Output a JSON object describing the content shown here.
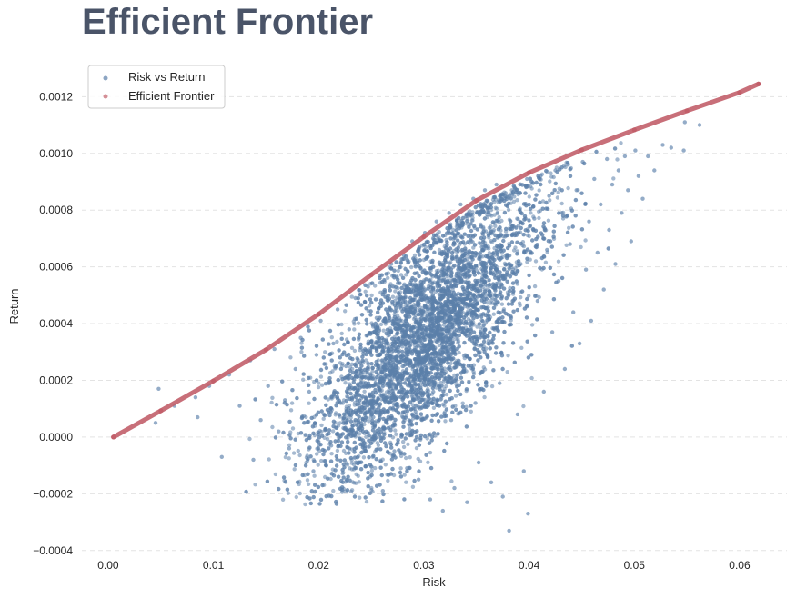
{
  "chart_data": {
    "type": "scatter",
    "title": "Efficient Frontier",
    "xlabel": "Risk",
    "ylabel": "Return",
    "xlim": [
      -0.0025,
      0.0645
    ],
    "ylim": [
      -0.00042,
      0.00131
    ],
    "x_ticks": [
      {
        "value": 0.0,
        "label": "0.00"
      },
      {
        "value": 0.01,
        "label": "0.01"
      },
      {
        "value": 0.02,
        "label": "0.02"
      },
      {
        "value": 0.03,
        "label": "0.03"
      },
      {
        "value": 0.04,
        "label": "0.04"
      },
      {
        "value": 0.05,
        "label": "0.05"
      },
      {
        "value": 0.06,
        "label": "0.06"
      }
    ],
    "y_ticks": [
      {
        "value": -0.0004,
        "label": "−0.0004"
      },
      {
        "value": -0.0002,
        "label": "−0.0002"
      },
      {
        "value": 0.0,
        "label": "0.0000"
      },
      {
        "value": 0.0002,
        "label": "0.0002"
      },
      {
        "value": 0.0004,
        "label": "0.0004"
      },
      {
        "value": 0.0006,
        "label": "0.0006"
      },
      {
        "value": 0.0008,
        "label": "0.0008"
      },
      {
        "value": 0.001,
        "label": "0.0010"
      },
      {
        "value": 0.0012,
        "label": "0.0012"
      }
    ],
    "grid": {
      "y": true,
      "x": false,
      "style": "dashed"
    },
    "legend_position": "top-left",
    "series": [
      {
        "name": "Risk vs Return",
        "color": "#5b7faa",
        "points": [
          [
            0.0045,
            5e-05
          ],
          [
            0.0048,
            0.00017
          ],
          [
            0.0063,
            0.00011
          ],
          [
            0.0083,
            0.00014
          ],
          [
            0.0085,
            7e-05
          ],
          [
            0.0096,
            0.00018
          ],
          [
            0.0108,
            -7e-05
          ],
          [
            0.0115,
            0.00022
          ],
          [
            0.0125,
            0.00011
          ],
          [
            0.0135,
            0.00027
          ],
          [
            0.0138,
            -8e-05
          ],
          [
            0.0145,
            6e-05
          ],
          [
            0.0152,
            0.00018
          ],
          [
            0.0158,
            0.00031
          ],
          [
            0.0162,
            2e-05
          ],
          [
            0.0168,
            0.00013
          ],
          [
            0.0172,
            -4e-05
          ],
          [
            0.0178,
            0.00024
          ],
          [
            0.0183,
            0.00035
          ],
          [
            0.0186,
            5e-05
          ],
          [
            0.0191,
            0.00016
          ],
          [
            0.0195,
            -0.00012
          ],
          [
            0.0198,
            0.00029
          ],
          [
            0.0202,
            0.00041
          ],
          [
            0.0205,
            8e-05
          ],
          [
            0.0209,
            0.00019
          ],
          [
            0.0212,
            -3e-05
          ],
          [
            0.0214,
            0.00033
          ],
          [
            0.0218,
            0.00045
          ],
          [
            0.0221,
            0.00012
          ],
          [
            0.0223,
            -0.00016
          ],
          [
            0.0226,
            0.00025
          ],
          [
            0.0229,
            0.00038
          ],
          [
            0.0232,
            4e-05
          ],
          [
            0.0235,
            0.00049
          ],
          [
            0.0238,
            -9e-05
          ],
          [
            0.0241,
            0.00018
          ],
          [
            0.0244,
            0.00031
          ],
          [
            0.0247,
            0.00053
          ],
          [
            0.0249,
            -0.00014
          ],
          [
            0.0252,
            7e-05
          ],
          [
            0.0255,
            0.00042
          ],
          [
            0.0258,
            0.00057
          ],
          [
            0.0261,
            -0.00019
          ],
          [
            0.0264,
            0.00022
          ],
          [
            0.0267,
            0.00036
          ],
          [
            0.0269,
            0.00061
          ],
          [
            0.0272,
            -5e-05
          ],
          [
            0.0275,
            0.00014
          ],
          [
            0.0278,
            0.00047
          ],
          [
            0.0281,
            0.00064
          ],
          [
            0.0284,
            -0.00011
          ],
          [
            0.0287,
            0.00027
          ],
          [
            0.0289,
            0.00069
          ],
          [
            0.0292,
            9e-05
          ],
          [
            0.0295,
            -0.00015
          ],
          [
            0.0298,
            0.00052
          ],
          [
            0.0301,
            0.00072
          ],
          [
            0.0303,
            0.00032
          ],
          [
            0.0306,
            -0.00022
          ],
          [
            0.0309,
            0.00016
          ],
          [
            0.0312,
            0.00076
          ],
          [
            0.0315,
            0.00056
          ],
          [
            0.0318,
            -0.00026
          ],
          [
            0.0321,
            0.00041
          ],
          [
            0.0324,
            0.00079
          ],
          [
            0.0326,
            6e-05
          ],
          [
            0.0329,
            -0.00018
          ],
          [
            0.0332,
            0.00062
          ],
          [
            0.0335,
            0.00082
          ],
          [
            0.0338,
            0.00024
          ],
          [
            0.0341,
            -0.00023
          ],
          [
            0.0344,
            0.00047
          ],
          [
            0.0347,
            0.00084
          ],
          [
            0.0349,
            0.00012
          ],
          [
            0.0352,
            -9e-05
          ],
          [
            0.0355,
            0.00067
          ],
          [
            0.0358,
            0.00087
          ],
          [
            0.0361,
            0.00033
          ],
          [
            0.0364,
            -0.00016
          ],
          [
            0.0367,
            0.00053
          ],
          [
            0.0369,
            0.00089
          ],
          [
            0.0372,
            0.00019
          ],
          [
            0.0375,
            -0.00021
          ],
          [
            0.0378,
            0.00071
          ],
          [
            0.0381,
            -0.00033
          ],
          [
            0.0383,
            0.00042
          ],
          [
            0.0386,
            0.00088
          ],
          [
            0.0389,
            8e-05
          ],
          [
            0.0392,
            0.00061
          ],
          [
            0.0395,
            -0.00012
          ],
          [
            0.0398,
            0.00091
          ],
          [
            0.0399,
            -0.00027
          ],
          [
            0.0402,
            0.00029
          ],
          [
            0.0405,
            0.00077
          ],
          [
            0.0408,
            0.00048
          ],
          [
            0.0411,
            0.00092
          ],
          [
            0.0414,
            0.00016
          ],
          [
            0.0417,
            0.00066
          ],
          [
            0.0419,
            0.00085
          ],
          [
            0.0422,
            0.00037
          ],
          [
            0.0425,
            0.00094
          ],
          [
            0.0428,
            0.00055
          ],
          [
            0.0431,
            0.00079
          ],
          [
            0.0434,
            0.00024
          ],
          [
            0.0437,
            0.00096
          ],
          [
            0.0439,
            0.00068
          ],
          [
            0.0442,
            0.00044
          ],
          [
            0.0445,
            0.00087
          ],
          [
            0.0448,
            0.00033
          ],
          [
            0.0451,
            0.00097
          ],
          [
            0.0454,
            0.00059
          ],
          [
            0.0457,
            0.00076
          ],
          [
            0.0459,
            0.00041
          ],
          [
            0.0462,
            0.00091
          ],
          [
            0.0465,
            0.00065
          ],
          [
            0.0468,
            0.00082
          ],
          [
            0.0471,
            0.00052
          ],
          [
            0.0474,
            0.00098
          ],
          [
            0.0476,
            0.00073
          ],
          [
            0.0479,
            0.00089
          ],
          [
            0.0482,
            0.00061
          ],
          [
            0.0485,
            0.00094
          ],
          [
            0.0488,
            0.00079
          ],
          [
            0.0491,
            0.00099
          ],
          [
            0.0494,
            0.00087
          ],
          [
            0.0497,
            0.00069
          ],
          [
            0.0501,
            0.00101
          ],
          [
            0.0504,
            0.00092
          ],
          [
            0.0508,
            0.00084
          ],
          [
            0.0513,
            0.00099
          ],
          [
            0.0519,
            0.00094
          ],
          [
            0.0527,
            0.00103
          ],
          [
            0.0535,
            0.00102
          ],
          [
            0.0547,
            0.00101
          ],
          [
            0.0548,
            0.00111
          ],
          [
            0.0562,
            0.0011
          ]
        ]
      },
      {
        "name": "Efficient Frontier",
        "color": "#c25f6a",
        "points": [
          [
            0.0005,
            0.0
          ],
          [
            0.005,
            9.3e-05
          ],
          [
            0.01,
            0.000198
          ],
          [
            0.015,
            0.000308
          ],
          [
            0.02,
            0.000433
          ],
          [
            0.025,
            0.000572
          ],
          [
            0.03,
            0.000706
          ],
          [
            0.035,
            0.000834
          ],
          [
            0.04,
            0.000932
          ],
          [
            0.045,
            0.001012
          ],
          [
            0.05,
            0.001083
          ],
          [
            0.055,
            0.00115
          ],
          [
            0.06,
            0.001215
          ],
          [
            0.0618,
            0.001245
          ]
        ]
      }
    ]
  }
}
